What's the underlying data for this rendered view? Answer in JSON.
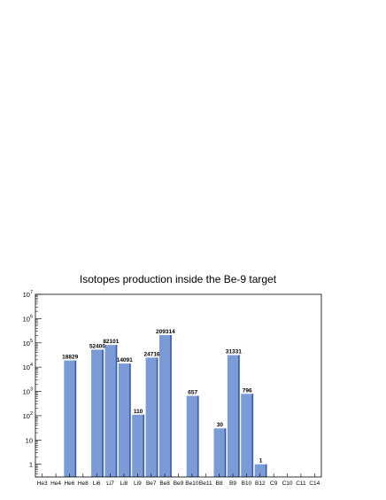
{
  "chart_data": {
    "type": "bar",
    "title": "Isotopes production inside the Be-9 target",
    "xlabel": "",
    "ylabel": "",
    "yscale": "log",
    "ylim": [
      0.3,
      10000000
    ],
    "y_ticks": [
      {
        "value": 1,
        "base": "1",
        "exp": ""
      },
      {
        "value": 10,
        "base": "10",
        "exp": ""
      },
      {
        "value": 100,
        "base": "10",
        "exp": "2"
      },
      {
        "value": 1000,
        "base": "10",
        "exp": "3"
      },
      {
        "value": 10000,
        "base": "10",
        "exp": "4"
      },
      {
        "value": 100000,
        "base": "10",
        "exp": "5"
      },
      {
        "value": 1000000,
        "base": "10",
        "exp": "6"
      },
      {
        "value": 10000000,
        "base": "10",
        "exp": "7"
      }
    ],
    "categories": [
      "He3",
      "He4",
      "He6",
      "He8",
      "Li6",
      "Li7",
      "Li8",
      "Li9",
      "Be7",
      "Be8",
      "Be9",
      "Be10",
      "Be11",
      "B8",
      "B9",
      "B10",
      "B12",
      "C9",
      "C10",
      "C11",
      "C14"
    ],
    "values": [
      0,
      0,
      18829,
      0,
      52400,
      82101,
      14091,
      110,
      24716,
      209314,
      0,
      657,
      0,
      30,
      31331,
      796,
      1,
      0,
      0,
      0,
      0
    ],
    "labels": [
      "",
      "",
      "18829",
      "",
      "52400",
      "82101",
      "14091",
      "110",
      "24716",
      "209314",
      "",
      "657",
      "",
      "30",
      "31331",
      "796",
      "1",
      "",
      "",
      "",
      ""
    ],
    "bar_color": "#7b9bd6",
    "bar_edge_color": "#3a5bb0",
    "grid": false,
    "legend": "none"
  }
}
